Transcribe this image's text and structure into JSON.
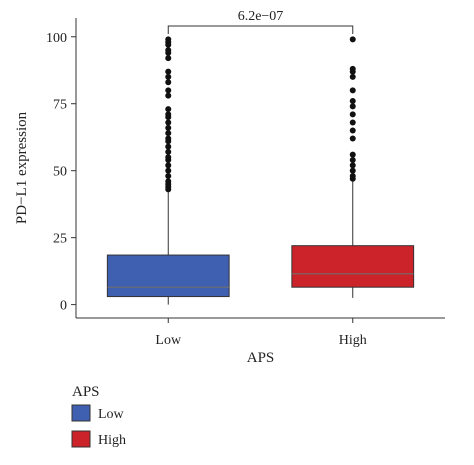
{
  "chart_data": {
    "type": "box",
    "xlabel": "APS",
    "ylabel": "PD−L1 expression",
    "ylim": [
      -5,
      107
    ],
    "yticks": [
      0,
      25,
      50,
      75,
      100
    ],
    "categories": [
      "Low",
      "High"
    ],
    "boxes": [
      {
        "name": "Low",
        "color": "#3f5fb0",
        "q1": 3,
        "median": 6.5,
        "q3": 18.5,
        "whisker_low": 0,
        "whisker_high": 42,
        "outliers": [
          43,
          44,
          45,
          46,
          48,
          50,
          52,
          54,
          55,
          57,
          59,
          61,
          62,
          64,
          66,
          68,
          70,
          71,
          73,
          78,
          80,
          83,
          85,
          87,
          92,
          94,
          95,
          97,
          98,
          99
        ]
      },
      {
        "name": "High",
        "color": "#cc2229",
        "q1": 6.5,
        "median": 11.5,
        "q3": 22,
        "whisker_low": 2.5,
        "whisker_high": 46,
        "outliers": [
          47,
          48,
          50,
          52,
          54,
          56,
          62,
          65,
          68,
          71,
          74,
          76,
          80,
          85,
          87,
          88,
          99
        ]
      }
    ],
    "significance": {
      "label": "6.2e−07",
      "between": [
        "Low",
        "High"
      ],
      "y": 104
    },
    "legend": {
      "title": "APS",
      "position": "bottom-left",
      "entries": [
        {
          "label": "Low",
          "color": "#3f5fb0"
        },
        {
          "label": "High",
          "color": "#cc2229"
        }
      ]
    }
  }
}
